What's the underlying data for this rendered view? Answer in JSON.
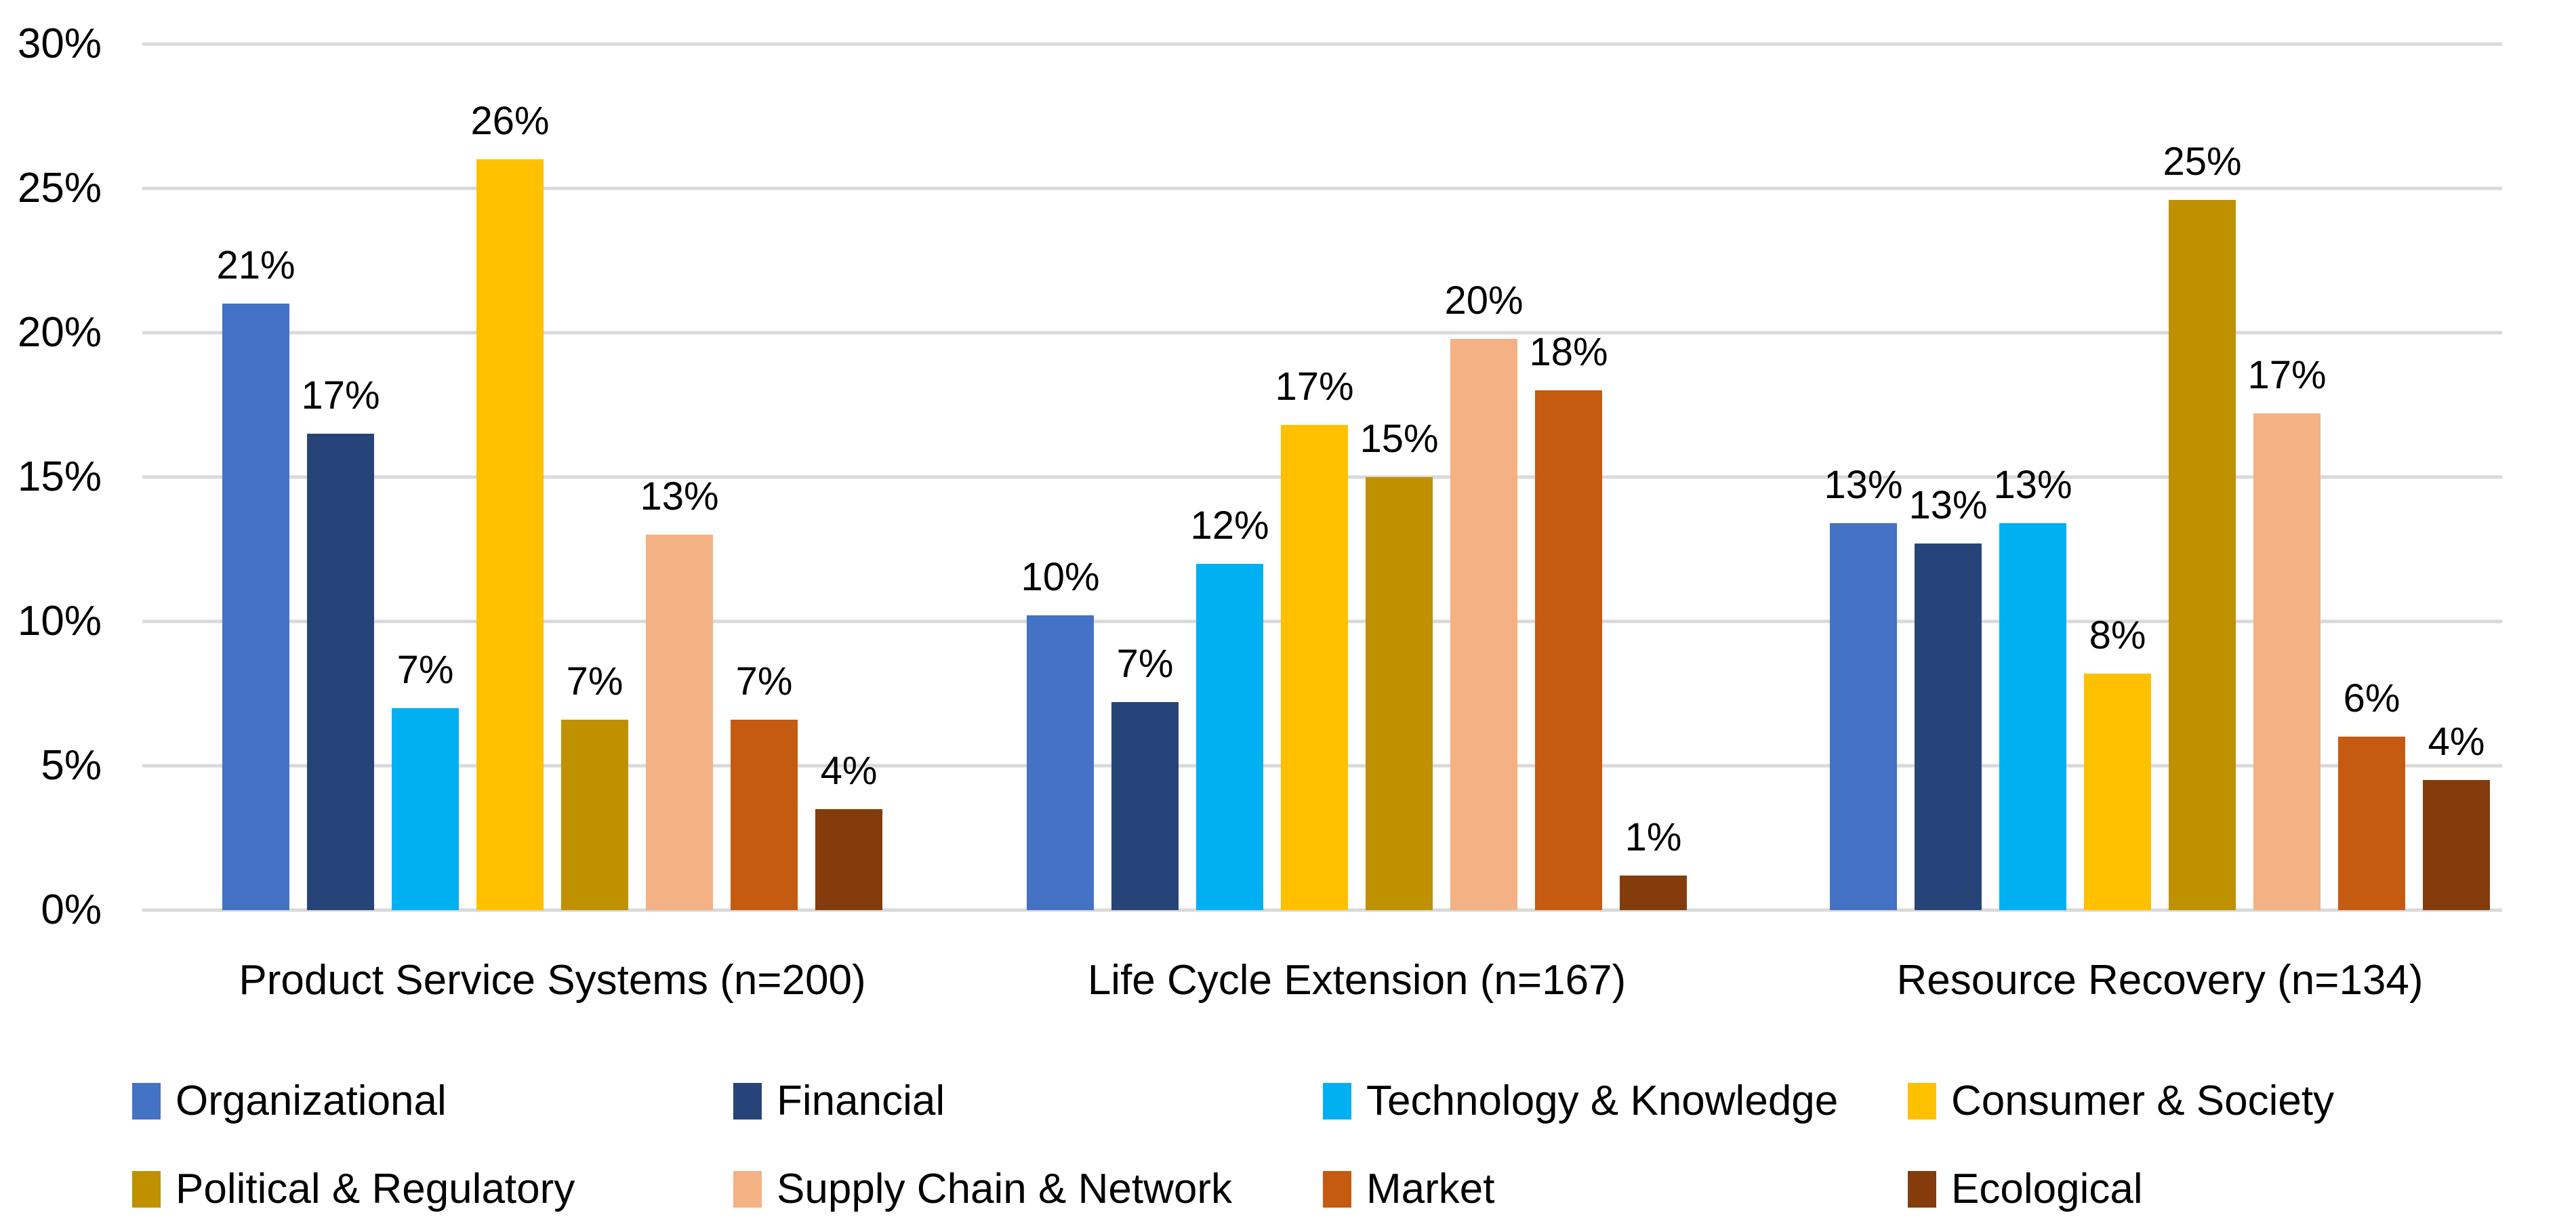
{
  "chart_data": {
    "type": "bar",
    "title": "",
    "xlabel": "",
    "ylabel": "",
    "ylim": [
      0,
      30
    ],
    "ytick_step": 5,
    "yticks": [
      "0%",
      "5%",
      "10%",
      "15%",
      "20%",
      "25%",
      "30%"
    ],
    "grid": true,
    "gridline_color": "#D9D9D9",
    "axis_text_color": "#000000",
    "background_color": "#FFFFFF",
    "legend_position": "bottom",
    "categories": [
      "Product Service Systems (n=200)",
      "Life Cycle Extension (n=167)",
      "Resource Recovery (n=134)"
    ],
    "series": [
      {
        "name": "Organizational",
        "color": "#4472C4",
        "values": [
          21.0,
          10.2,
          13.4
        ],
        "labels": [
          "21%",
          "10%",
          "13%"
        ]
      },
      {
        "name": "Financial",
        "color": "#264478",
        "values": [
          16.5,
          7.2,
          12.7
        ],
        "labels": [
          "17%",
          "7%",
          "13%"
        ]
      },
      {
        "name": "Technology & Knowledge",
        "color": "#00B0F0",
        "values": [
          7.0,
          12.0,
          13.4
        ],
        "labels": [
          "7%",
          "12%",
          "13%"
        ]
      },
      {
        "name": "Consumer & Society",
        "color": "#FFC000",
        "values": [
          26.0,
          16.8,
          8.2
        ],
        "labels": [
          "26%",
          "17%",
          "8%"
        ]
      },
      {
        "name": "Political & Regulatory",
        "color": "#BF9000",
        "values": [
          6.6,
          15.0,
          24.6
        ],
        "labels": [
          "7%",
          "15%",
          "25%"
        ]
      },
      {
        "name": "Supply Chain & Network",
        "color": "#F4B183",
        "values": [
          13.0,
          19.8,
          17.2
        ],
        "labels": [
          "13%",
          "20%",
          "17%"
        ]
      },
      {
        "name": "Market",
        "color": "#C55A11",
        "values": [
          6.6,
          18.0,
          6.0
        ],
        "labels": [
          "7%",
          "18%",
          "6%"
        ]
      },
      {
        "name": "Ecological",
        "color": "#843C0C",
        "values": [
          3.5,
          1.2,
          4.5
        ],
        "labels": [
          "4%",
          "1%",
          "4%"
        ]
      }
    ],
    "legend_rows": [
      [
        "Organizational",
        "Financial",
        "Technology & Knowledge",
        "Consumer & Society"
      ],
      [
        "Political & Regulatory",
        "Supply Chain & Network",
        "Market",
        "Ecological"
      ]
    ]
  }
}
